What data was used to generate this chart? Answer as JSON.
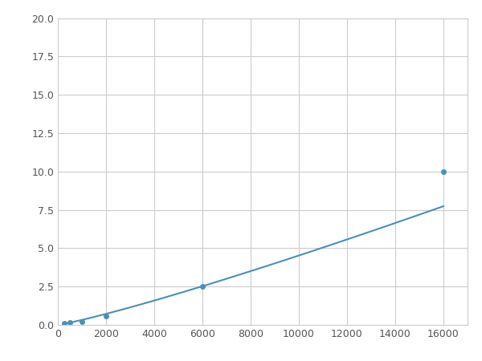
{
  "x": [
    250,
    500,
    1000,
    2000,
    6000,
    16000
  ],
  "y": [
    0.1,
    0.15,
    0.2,
    0.6,
    2.5,
    10.0
  ],
  "line_color": "#4a90b8",
  "marker_color": "#4a90b8",
  "marker_size": 4,
  "xlim": [
    0,
    17000
  ],
  "ylim": [
    0,
    20.0
  ],
  "xticks": [
    0,
    2000,
    4000,
    6000,
    8000,
    10000,
    12000,
    14000,
    16000
  ],
  "yticks": [
    0.0,
    2.5,
    5.0,
    7.5,
    10.0,
    12.5,
    15.0,
    17.5,
    20.0
  ],
  "grid_color": "#cccccc",
  "bg_color": "#ffffff",
  "figure_bg": "#ffffff"
}
